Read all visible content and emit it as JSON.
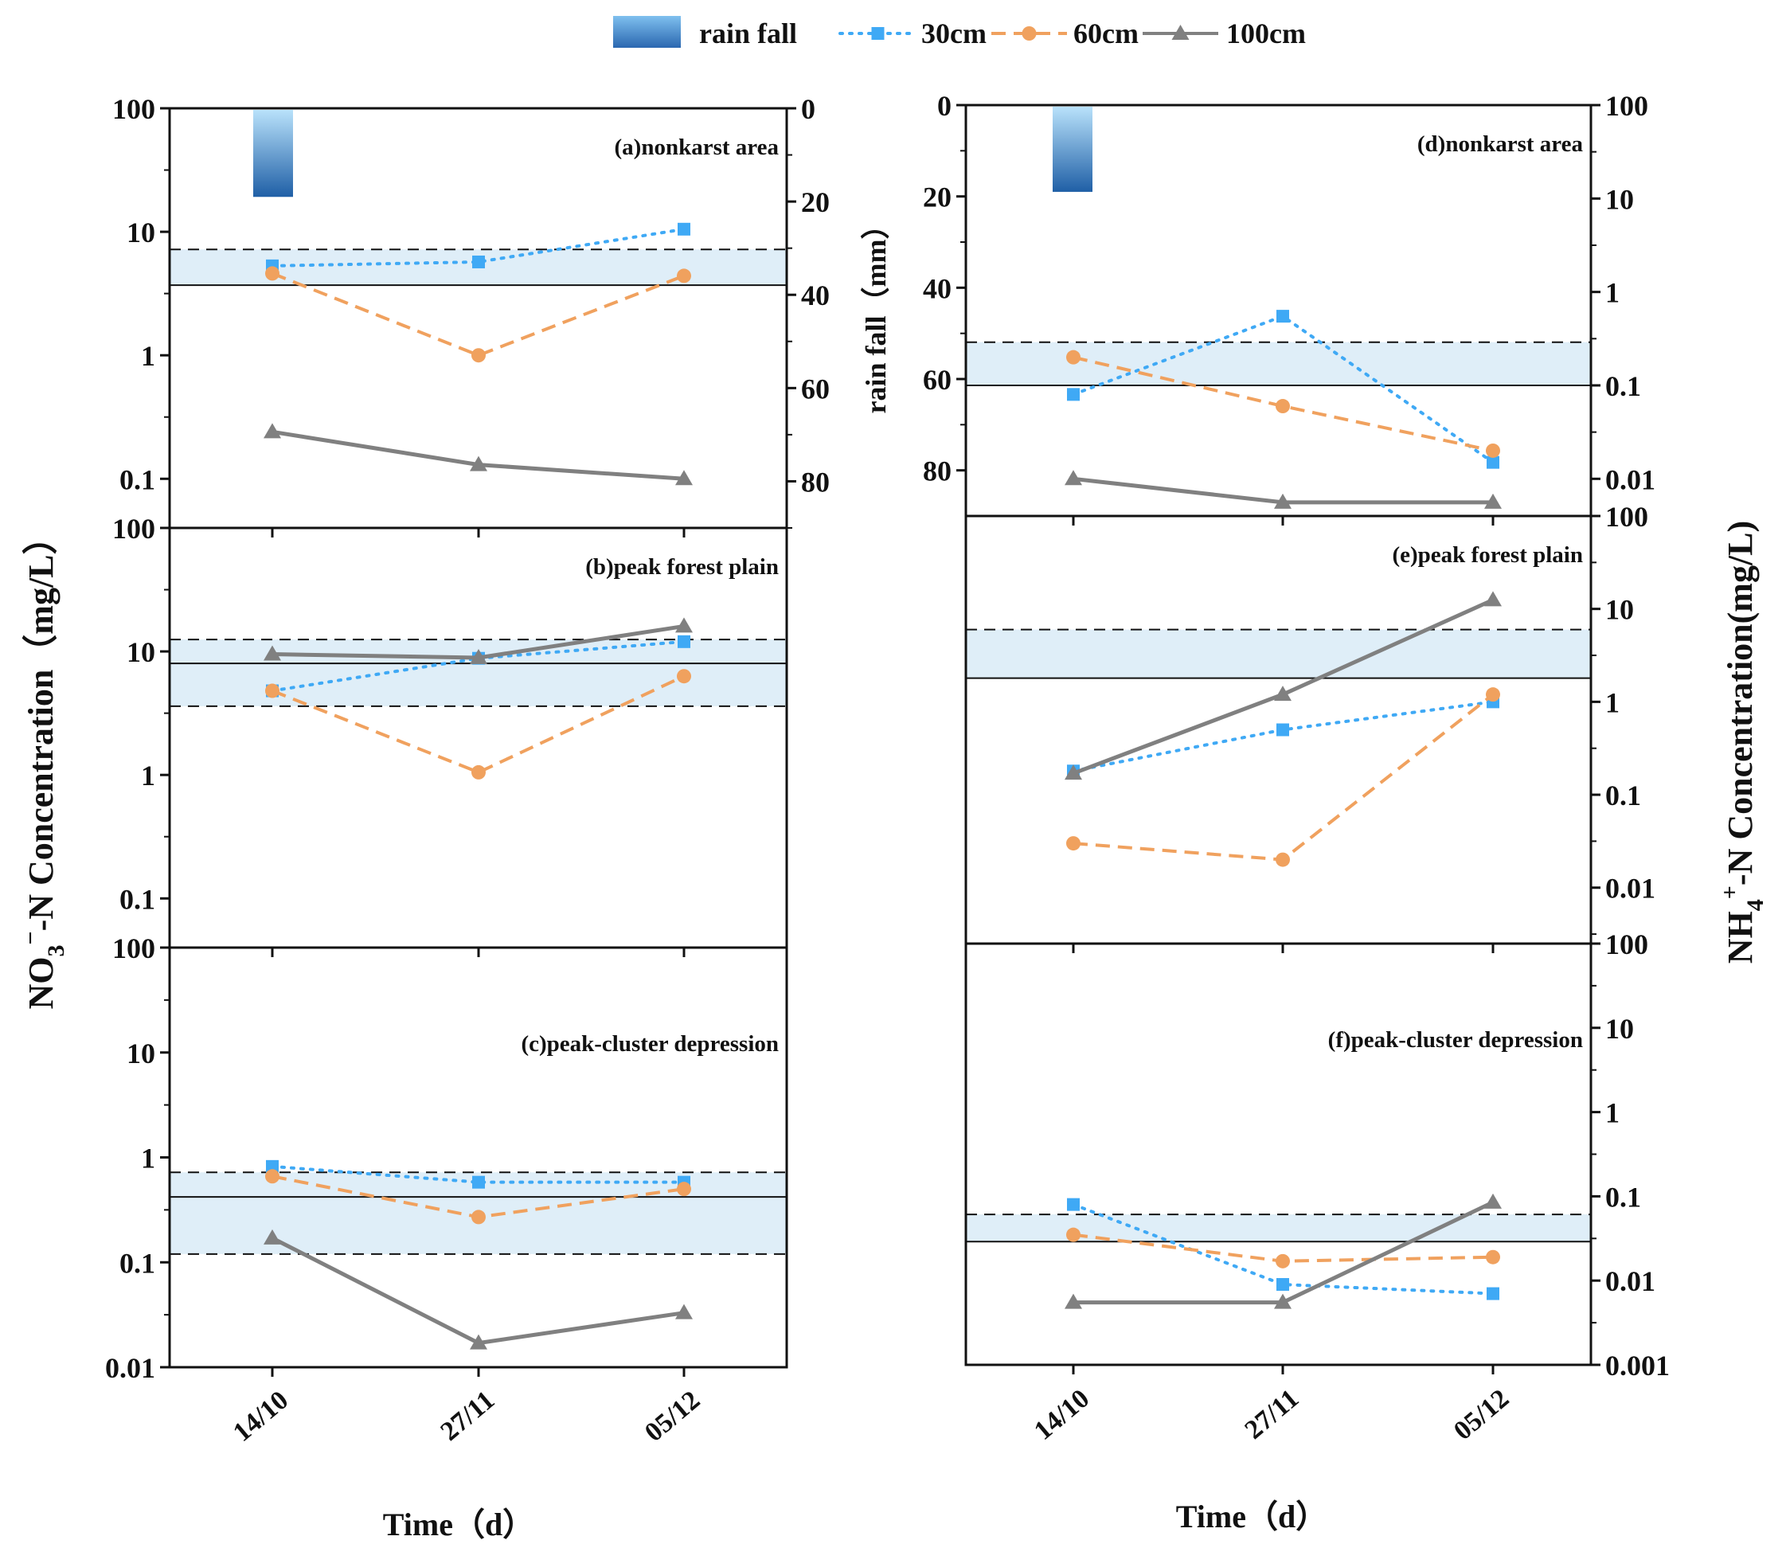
{
  "chart_data": {
    "type": "line",
    "legend": {
      "position": "top",
      "items": [
        {
          "name": "rain fall",
          "kind": "bar"
        },
        {
          "name": "30cm",
          "kind": "line",
          "color": "#3fa9f5",
          "marker": "square",
          "dash": "dotted"
        },
        {
          "name": "60cm",
          "kind": "line",
          "color": "#f0a15e",
          "marker": "circle",
          "dash": "dashed"
        },
        {
          "name": "100cm",
          "kind": "line",
          "color": "#808080",
          "marker": "triangle",
          "dash": "solid"
        }
      ]
    },
    "x_categories": [
      "14/10",
      "27/11",
      "05/12"
    ],
    "x_label": "Time（d）",
    "left_ylabel": {
      "base": "NO",
      "sub": "3",
      "sup": "−",
      "rest": "-N Concentration（mg/L）"
    },
    "right_ylabel": {
      "base": "NH",
      "sub": "4",
      "sup": "+",
      "rest": "-N Concentration(mg/L)"
    },
    "rain_axis_label": "rain fall（mm）",
    "rain_ticks": [
      "0",
      "20",
      "40",
      "60",
      "80"
    ],
    "rain_ylim": [
      0,
      90
    ],
    "rain_value": 19,
    "left_panels": [
      {
        "title": "(a)nonkarst area",
        "ylim": [
          0.04,
          100
        ],
        "ticks": [
          "100",
          "10",
          "1",
          "0.1"
        ],
        "band": [
          3.7,
          7.2
        ],
        "solid_line": 3.7,
        "dashed_lines": [
          7.2
        ],
        "series": {
          "30cm": [
            5.3,
            5.7,
            10.5
          ],
          "60cm": [
            4.6,
            1.0,
            4.4
          ],
          "100cm": [
            0.24,
            0.13,
            0.1
          ]
        }
      },
      {
        "title": "(b)peak forest plain",
        "ylim": [
          0.04,
          100
        ],
        "ticks": [
          "100",
          "10",
          "1",
          "0.1"
        ],
        "band": [
          3.6,
          12.5
        ],
        "solid_line": 8.0,
        "dashed_lines": [
          12.5,
          3.6
        ],
        "series": {
          "30cm": [
            4.8,
            8.8,
            12.0
          ],
          "60cm": [
            4.8,
            1.05,
            6.3
          ],
          "100cm": [
            9.5,
            8.9,
            16.0
          ]
        }
      },
      {
        "title": "(c)peak-cluster depression",
        "ylim": [
          0.01,
          100
        ],
        "ticks": [
          "100",
          "10",
          "1",
          "0.1",
          "0.01"
        ],
        "band": [
          0.12,
          0.72
        ],
        "solid_line": 0.42,
        "dashed_lines": [
          0.72,
          0.12
        ],
        "series": {
          "30cm": [
            0.82,
            0.58,
            0.58
          ],
          "60cm": [
            0.66,
            0.27,
            0.5
          ],
          "100cm": [
            0.17,
            0.017,
            0.033
          ]
        }
      }
    ],
    "right_panels": [
      {
        "title": "(d)nonkarst area",
        "ylim": [
          0.004,
          100
        ],
        "ticks": [
          "100",
          "10",
          "1",
          "0.1",
          "0.01"
        ],
        "band": [
          0.1,
          0.29
        ],
        "solid_line": 0.1,
        "dashed_lines": [
          0.29
        ],
        "series": {
          "30cm": [
            0.08,
            0.55,
            0.015
          ],
          "60cm": [
            0.2,
            0.06,
            0.02
          ],
          "100cm": [
            0.01,
            0.0056,
            0.0056
          ]
        }
      },
      {
        "title": "(e)peak forest plain",
        "ylim": [
          0.0025,
          100
        ],
        "ticks": [
          "100",
          "10",
          "1",
          "0.1",
          "0.01"
        ],
        "band": [
          1.8,
          6.0
        ],
        "solid_line": 1.8,
        "dashed_lines": [
          6.0
        ],
        "series": {
          "30cm": [
            0.18,
            0.5,
            1.0
          ],
          "60cm": [
            0.03,
            0.02,
            1.2
          ],
          "100cm": [
            0.17,
            1.2,
            12.5
          ]
        }
      },
      {
        "title": "(f)peak-cluster depression",
        "ylim": [
          0.001,
          100
        ],
        "ticks": [
          "100",
          "10",
          "1",
          "0.1",
          "0.01",
          "0.001"
        ],
        "band": [
          0.029,
          0.061
        ],
        "solid_line": 0.029,
        "dashed_lines": [
          0.061
        ],
        "series": {
          "30cm": [
            0.08,
            0.009,
            0.007
          ],
          "60cm": [
            0.035,
            0.017,
            0.019
          ],
          "100cm": [
            0.0055,
            0.0055,
            0.085
          ]
        }
      }
    ]
  }
}
